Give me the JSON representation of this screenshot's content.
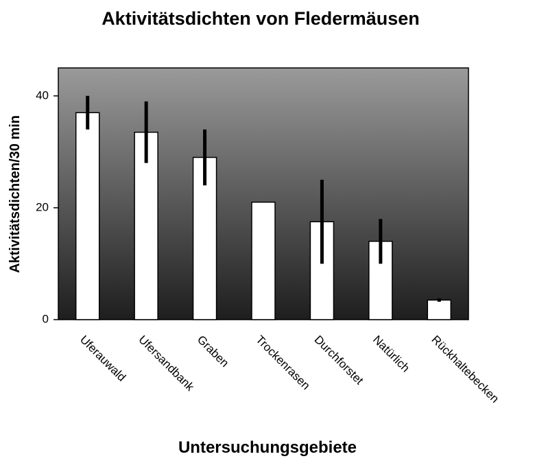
{
  "chart_data": {
    "type": "bar",
    "title": "Aktivitätsdichten von Fledermäusen",
    "x_label": "Untersuchungsgebiete",
    "y_label": "Aktivitätsdichten/30 min",
    "categories": [
      "Uferauwald",
      "Ufersandbank",
      "Graben",
      "Trockenrasen",
      "Durchforstet",
      "Natürlich",
      "Rückhaltebecken"
    ],
    "values": [
      37,
      33.5,
      29,
      21,
      17.5,
      14,
      3.5
    ],
    "errors": [
      3,
      5.5,
      5,
      0,
      7.5,
      4,
      0.3
    ],
    "color": "#ffffff",
    "error_color": "#000000",
    "ylim": [
      0,
      45
    ],
    "yticks": [
      0,
      20,
      40
    ],
    "grid": false
  }
}
